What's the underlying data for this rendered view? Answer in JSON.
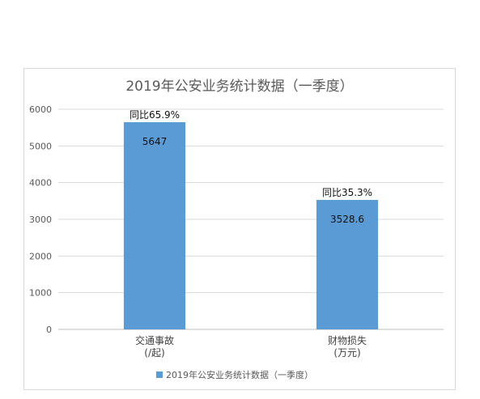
{
  "chart_data": {
    "type": "bar",
    "title": "2019年公安业务统计数据（一季度）",
    "categories": [
      {
        "line1": "交通事故",
        "line2": "(/起)"
      },
      {
        "line1": "财物损失",
        "line2": "(万元)"
      }
    ],
    "series": [
      {
        "name": "2019年公安业务统计数据（一季度）",
        "values": [
          5647,
          3528.6
        ],
        "color": "#5b9bd5"
      }
    ],
    "value_labels": [
      "5647",
      "3528.6"
    ],
    "annotations": [
      "同比65.9%",
      "同比35.3%"
    ],
    "yticks": [
      "0",
      "1000",
      "2000",
      "3000",
      "4000",
      "5000",
      "6000"
    ],
    "ylim": [
      0,
      6000
    ],
    "grid": true,
    "legend_position": "bottom"
  }
}
